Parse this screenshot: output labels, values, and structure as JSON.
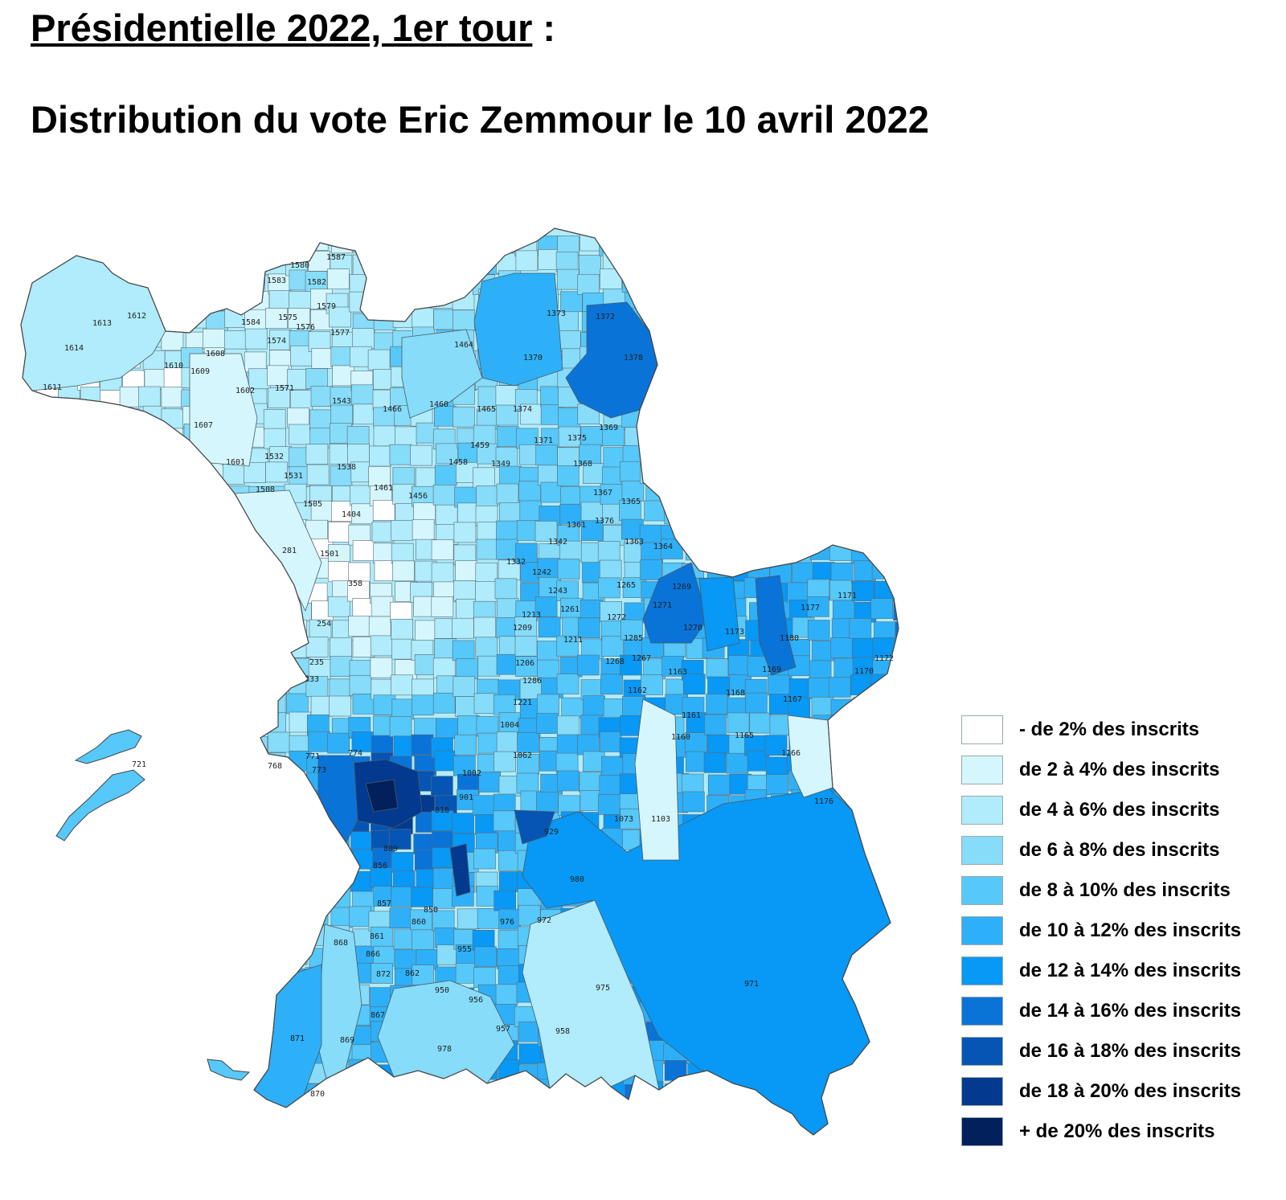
{
  "title": {
    "main": "Présidentielle 2022, 1er tour",
    "suffix": " :",
    "subtitle": "Distribution du vote Eric Zemmour le 10 avril 2022"
  },
  "legend": [
    {
      "label": "- de 2% des inscrits",
      "color": "#ffffff"
    },
    {
      "label": "de 2 à 4% des inscrits",
      "color": "#d5f6fd"
    },
    {
      "label": "de 4 à 6% des inscrits",
      "color": "#b0ecfb"
    },
    {
      "label": "de 6 à 8% des inscrits",
      "color": "#86dcf9"
    },
    {
      "label": "de 8 à 10% des inscrits",
      "color": "#56c8fa"
    },
    {
      "label": "de 10 à 12% des inscrits",
      "color": "#2eb0f8"
    },
    {
      "label": "de 12 à 14% des inscrits",
      "color": "#0898f5"
    },
    {
      "label": "de 14 à 16% des inscrits",
      "color": "#0a73d8"
    },
    {
      "label": "de 16 à 18% des inscrits",
      "color": "#0655b4"
    },
    {
      "label": "de 18 à 20% des inscrits",
      "color": "#033a8f"
    },
    {
      "label": "+ de 20% des inscrits",
      "color": "#01205c"
    }
  ],
  "bureaux": [
    {
      "id": "1587",
      "c": 0
    },
    {
      "id": "1580",
      "c": 2
    },
    {
      "id": "1583",
      "c": 2
    },
    {
      "id": "1582",
      "c": 2
    },
    {
      "id": "1579",
      "c": 2
    },
    {
      "id": "1575",
      "c": 2
    },
    {
      "id": "1577",
      "c": 0
    },
    {
      "id": "1576",
      "c": 2
    },
    {
      "id": "1574",
      "c": 2
    },
    {
      "id": "1612",
      "c": 2
    },
    {
      "id": "1613",
      "c": 2
    },
    {
      "id": "1614",
      "c": 2
    },
    {
      "id": "1611",
      "c": 4
    },
    {
      "id": "1610",
      "c": 2
    },
    {
      "id": "1609",
      "c": 2
    },
    {
      "id": "1608",
      "c": 2
    },
    {
      "id": "1584",
      "c": 3
    },
    {
      "id": "1602",
      "c": 2
    },
    {
      "id": "1607",
      "c": 3
    },
    {
      "id": "1571",
      "c": 2
    },
    {
      "id": "1543",
      "c": 3
    },
    {
      "id": "1601",
      "c": 1
    },
    {
      "id": "1532",
      "c": 2
    },
    {
      "id": "1531",
      "c": 2
    },
    {
      "id": "1508",
      "c": 2
    },
    {
      "id": "1538",
      "c": 2
    },
    {
      "id": "1505",
      "c": 2
    },
    {
      "id": "1404",
      "c": 0
    },
    {
      "id": "1501",
      "c": 1
    },
    {
      "id": "281",
      "c": 1
    },
    {
      "id": "1466",
      "c": 1
    },
    {
      "id": "1460",
      "c": 3
    },
    {
      "id": "1464",
      "c": 3
    },
    {
      "id": "1465",
      "c": 3
    },
    {
      "id": "1374",
      "c": 3
    },
    {
      "id": "1373",
      "c": 5
    },
    {
      "id": "1372",
      "c": 4
    },
    {
      "id": "1370",
      "c": 5
    },
    {
      "id": "1378",
      "c": 7
    },
    {
      "id": "1369",
      "c": 5
    },
    {
      "id": "1375",
      "c": 4
    },
    {
      "id": "1368",
      "c": 4
    },
    {
      "id": "1371",
      "c": 6
    },
    {
      "id": "1459",
      "c": 2
    },
    {
      "id": "1458",
      "c": 2
    },
    {
      "id": "1349",
      "c": 3
    },
    {
      "id": "1461",
      "c": 0
    },
    {
      "id": "1456",
      "c": 1
    },
    {
      "id": "1367",
      "c": 5
    },
    {
      "id": "1365",
      "c": 4
    },
    {
      "id": "1376",
      "c": 6
    },
    {
      "id": "1361",
      "c": 4
    },
    {
      "id": "1363",
      "c": 5
    },
    {
      "id": "1364",
      "c": 3
    },
    {
      "id": "1342",
      "c": 0
    },
    {
      "id": "1332",
      "c": 4
    },
    {
      "id": "1265",
      "c": 5
    },
    {
      "id": "1269",
      "c": 4
    },
    {
      "id": "1271",
      "c": 4
    },
    {
      "id": "1270",
      "c": 7
    },
    {
      "id": "1173",
      "c": 6
    },
    {
      "id": "1180",
      "c": 7
    },
    {
      "id": "1177",
      "c": 6
    },
    {
      "id": "1171",
      "c": 5
    },
    {
      "id": "1172",
      "c": 5
    },
    {
      "id": "1170",
      "c": 5
    },
    {
      "id": "1169",
      "c": 4
    },
    {
      "id": "1167",
      "c": 5
    },
    {
      "id": "1168",
      "c": 3
    },
    {
      "id": "1163",
      "c": 3
    },
    {
      "id": "1161",
      "c": 2
    },
    {
      "id": "1165",
      "c": 3
    },
    {
      "id": "1166",
      "c": 3
    },
    {
      "id": "1176",
      "c": 1
    },
    {
      "id": "1160",
      "c": 3
    },
    {
      "id": "1103",
      "c": 1
    },
    {
      "id": "1073",
      "c": 3
    },
    {
      "id": "980",
      "c": 6
    },
    {
      "id": "971",
      "c": 6
    },
    {
      "id": "975",
      "c": 2
    },
    {
      "id": "958",
      "c": 3
    },
    {
      "id": "957",
      "c": 4
    },
    {
      "id": "978",
      "c": 3
    },
    {
      "id": "950",
      "c": 3
    },
    {
      "id": "956",
      "c": 3
    },
    {
      "id": "955",
      "c": 4
    },
    {
      "id": "867",
      "c": 4
    },
    {
      "id": "869",
      "c": 3
    },
    {
      "id": "870",
      "c": 3
    },
    {
      "id": "871",
      "c": 4
    },
    {
      "id": "868",
      "c": 5
    },
    {
      "id": "866",
      "c": 4
    },
    {
      "id": "872",
      "c": 4
    },
    {
      "id": "862",
      "c": 4
    },
    {
      "id": "861",
      "c": 4
    },
    {
      "id": "860",
      "c": 4
    },
    {
      "id": "857",
      "c": 5
    },
    {
      "id": "850",
      "c": 5
    },
    {
      "id": "856",
      "c": 7
    },
    {
      "id": "809",
      "c": 7
    },
    {
      "id": "818",
      "c": 5
    },
    {
      "id": "773",
      "c": 7
    },
    {
      "id": "774",
      "c": 6
    },
    {
      "id": "771",
      "c": 5
    },
    {
      "id": "768",
      "c": 5
    },
    {
      "id": "721",
      "c": 5
    },
    {
      "id": "1004",
      "c": 3
    },
    {
      "id": "1002",
      "c": 3
    },
    {
      "id": "1062",
      "c": 3
    },
    {
      "id": "901",
      "c": 3
    },
    {
      "id": "929",
      "c": 8
    },
    {
      "id": "972",
      "c": 5
    },
    {
      "id": "976",
      "c": 3
    },
    {
      "id": "1221",
      "c": 3
    },
    {
      "id": "1286",
      "c": 4
    },
    {
      "id": "1206",
      "c": 4
    },
    {
      "id": "1211",
      "c": 5
    },
    {
      "id": "1272",
      "c": 5
    },
    {
      "id": "1285",
      "c": 7
    },
    {
      "id": "1267",
      "c": 5
    },
    {
      "id": "1268",
      "c": 4
    },
    {
      "id": "1261",
      "c": 5
    },
    {
      "id": "1243",
      "c": 5
    },
    {
      "id": "1242",
      "c": 6
    },
    {
      "id": "1213",
      "c": 4
    },
    {
      "id": "1209",
      "c": 4
    },
    {
      "id": "254",
      "c": 2
    },
    {
      "id": "235",
      "c": 2
    },
    {
      "id": "233",
      "c": 3
    },
    {
      "id": "358",
      "c": 1
    },
    {
      "id": "1162",
      "c": 4
    }
  ],
  "map_note": ""
}
